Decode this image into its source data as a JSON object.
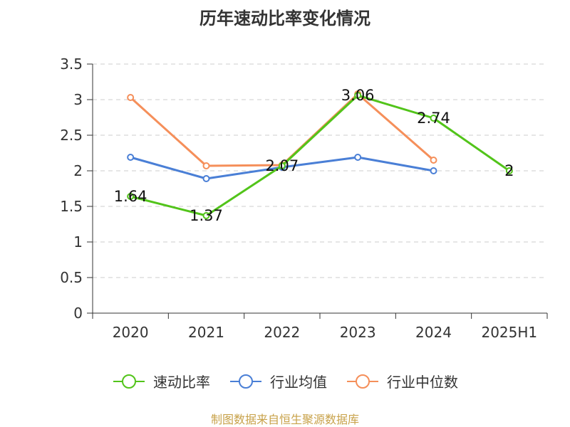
{
  "title": "历年速动比率变化情况",
  "source": "制图数据来自恒生聚源数据库",
  "chart_data": {
    "type": "line",
    "categories": [
      "2020",
      "2021",
      "2022",
      "2023",
      "2024",
      "2025H1"
    ],
    "ylim": [
      0,
      3.5
    ],
    "yticks": [
      0,
      0.5,
      1,
      1.5,
      2,
      2.5,
      3,
      3.5
    ],
    "ytick_labels": [
      "0",
      "0.5",
      "1",
      "1.5",
      "2",
      "2.5",
      "3",
      "3.5"
    ],
    "grid": true,
    "legend_position": "bottom",
    "series": [
      {
        "name": "速动比率",
        "color": "#52c41a",
        "values": [
          1.64,
          1.37,
          2.07,
          3.06,
          2.74,
          2
        ],
        "labels": [
          "1.64",
          "1.37",
          "2.07",
          "3.06",
          "2.74",
          "2"
        ]
      },
      {
        "name": "行业均值",
        "color": "#4a7fd6",
        "values": [
          2.19,
          1.89,
          2.05,
          2.19,
          2.0,
          null
        ]
      },
      {
        "name": "行业中位数",
        "color": "#f58f5a",
        "values": [
          3.03,
          2.07,
          2.08,
          3.08,
          2.15,
          null
        ]
      }
    ]
  }
}
